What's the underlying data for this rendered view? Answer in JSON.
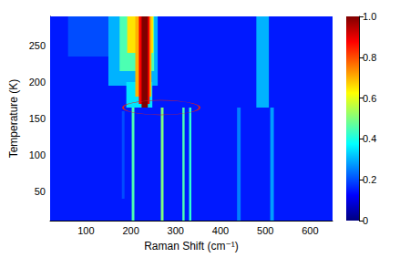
{
  "chart_data": {
    "type": "heatmap",
    "x_label": "Raman Shift (cm⁻¹)",
    "y_label": "Temperature (K)",
    "xlim": [
      20,
      650
    ],
    "xticks": [
      100,
      200,
      300,
      400,
      500,
      600
    ],
    "ylim": [
      10,
      290
    ],
    "yticks": [
      50,
      100,
      150,
      200,
      250
    ],
    "cells": [
      [
        20,
        650,
        10,
        290,
        0.15
      ],
      [
        180,
        186,
        40,
        160,
        0.2
      ],
      [
        202,
        208,
        10,
        165,
        0.45
      ],
      [
        267,
        273,
        10,
        165,
        0.5
      ],
      [
        315,
        320,
        10,
        165,
        0.45
      ],
      [
        330,
        335,
        10,
        165,
        0.42
      ],
      [
        437,
        445,
        10,
        165,
        0.25
      ],
      [
        511,
        519,
        10,
        165,
        0.28
      ],
      [
        60,
        200,
        235,
        290,
        0.2
      ],
      [
        150,
        260,
        195,
        290,
        0.3
      ],
      [
        175,
        252,
        215,
        290,
        0.45
      ],
      [
        192,
        250,
        240,
        290,
        0.65
      ],
      [
        190,
        248,
        165,
        200,
        0.35
      ],
      [
        210,
        246,
        180,
        290,
        0.7
      ],
      [
        218,
        242,
        170,
        290,
        0.88
      ],
      [
        224,
        238,
        165,
        290,
        1.0
      ],
      [
        480,
        508,
        165,
        290,
        0.3
      ]
    ],
    "colorbar_lim": [
      0,
      1
    ],
    "colorbar_ticks": [
      0,
      0.2,
      0.4,
      0.6,
      0.8,
      {
        "value": 1,
        "label": "1.0"
      }
    ]
  }
}
